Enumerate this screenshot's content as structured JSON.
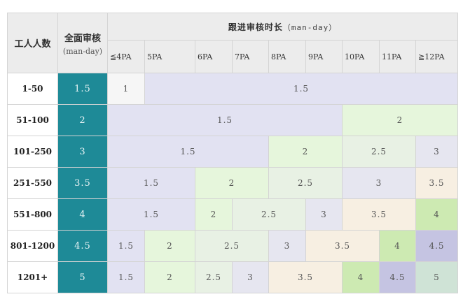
{
  "header": {
    "staff_count": "工人人数",
    "full_audit": "全面审核",
    "full_audit_unit": "(man-day)",
    "followup_title": "跟进审核时长",
    "followup_unit": "（man-day）",
    "pa_columns": [
      "≦4PA",
      "5PA",
      "6PA",
      "7PA",
      "8PA",
      "9PA",
      "10PA",
      "11PA",
      "≧12PA"
    ]
  },
  "rows": [
    {
      "range": "1-50",
      "full": "1.5",
      "cells": [
        {
          "v": "1",
          "span": 1,
          "c": "c-white"
        },
        {
          "v": "1.5",
          "span": 8,
          "c": "c-lav"
        }
      ]
    },
    {
      "range": "51-100",
      "full": "2",
      "cells": [
        {
          "v": "1.5",
          "span": 6,
          "c": "c-lav"
        },
        {
          "v": "2",
          "span": 3,
          "c": "c-lgreen"
        }
      ]
    },
    {
      "range": "101-250",
      "full": "3",
      "cells": [
        {
          "v": "1.5",
          "span": 4,
          "c": "c-lav"
        },
        {
          "v": "2",
          "span": 2,
          "c": "c-lgreen"
        },
        {
          "v": "2.5",
          "span": 2,
          "c": "c-mint"
        },
        {
          "v": "3",
          "span": 1,
          "c": "c-lgray"
        }
      ]
    },
    {
      "range": "251-550",
      "full": "3.5",
      "cells": [
        {
          "v": "1.5",
          "span": 2,
          "c": "c-lav"
        },
        {
          "v": "2",
          "span": 2,
          "c": "c-lgreen"
        },
        {
          "v": "2.5",
          "span": 2,
          "c": "c-mint"
        },
        {
          "v": "3",
          "span": 2,
          "c": "c-lgray"
        },
        {
          "v": "3.5",
          "span": 1,
          "c": "c-cream"
        }
      ]
    },
    {
      "range": "551-800",
      "full": "4",
      "cells": [
        {
          "v": "1.5",
          "span": 2,
          "c": "c-lav"
        },
        {
          "v": "2",
          "span": 1,
          "c": "c-lgreen"
        },
        {
          "v": "2.5",
          "span": 2,
          "c": "c-mint"
        },
        {
          "v": "3",
          "span": 1,
          "c": "c-lgray"
        },
        {
          "v": "3.5",
          "span": 2,
          "c": "c-cream"
        },
        {
          "v": "4",
          "span": 1,
          "c": "c-green"
        }
      ]
    },
    {
      "range": "801-1200",
      "full": "4.5",
      "cells": [
        {
          "v": "1.5",
          "span": 1,
          "c": "c-lav"
        },
        {
          "v": "2",
          "span": 1,
          "c": "c-lgreen"
        },
        {
          "v": "2.5",
          "span": 2,
          "c": "c-mint"
        },
        {
          "v": "3",
          "span": 1,
          "c": "c-lgray"
        },
        {
          "v": "3.5",
          "span": 2,
          "c": "c-cream"
        },
        {
          "v": "4",
          "span": 1,
          "c": "c-green"
        },
        {
          "v": "4.5",
          "span": 1,
          "c": "c-purple"
        }
      ]
    },
    {
      "range": "1201+",
      "full": "5",
      "cells": [
        {
          "v": "1.5",
          "span": 1,
          "c": "c-lav"
        },
        {
          "v": "2",
          "span": 1,
          "c": "c-lgreen"
        },
        {
          "v": "2.5",
          "span": 1,
          "c": "c-mint"
        },
        {
          "v": "3",
          "span": 1,
          "c": "c-lgray"
        },
        {
          "v": "3.5",
          "span": 2,
          "c": "c-cream"
        },
        {
          "v": "4",
          "span": 1,
          "c": "c-green"
        },
        {
          "v": "4.5",
          "span": 1,
          "c": "c-purple"
        },
        {
          "v": "5",
          "span": 1,
          "c": "c-sage"
        }
      ]
    }
  ]
}
